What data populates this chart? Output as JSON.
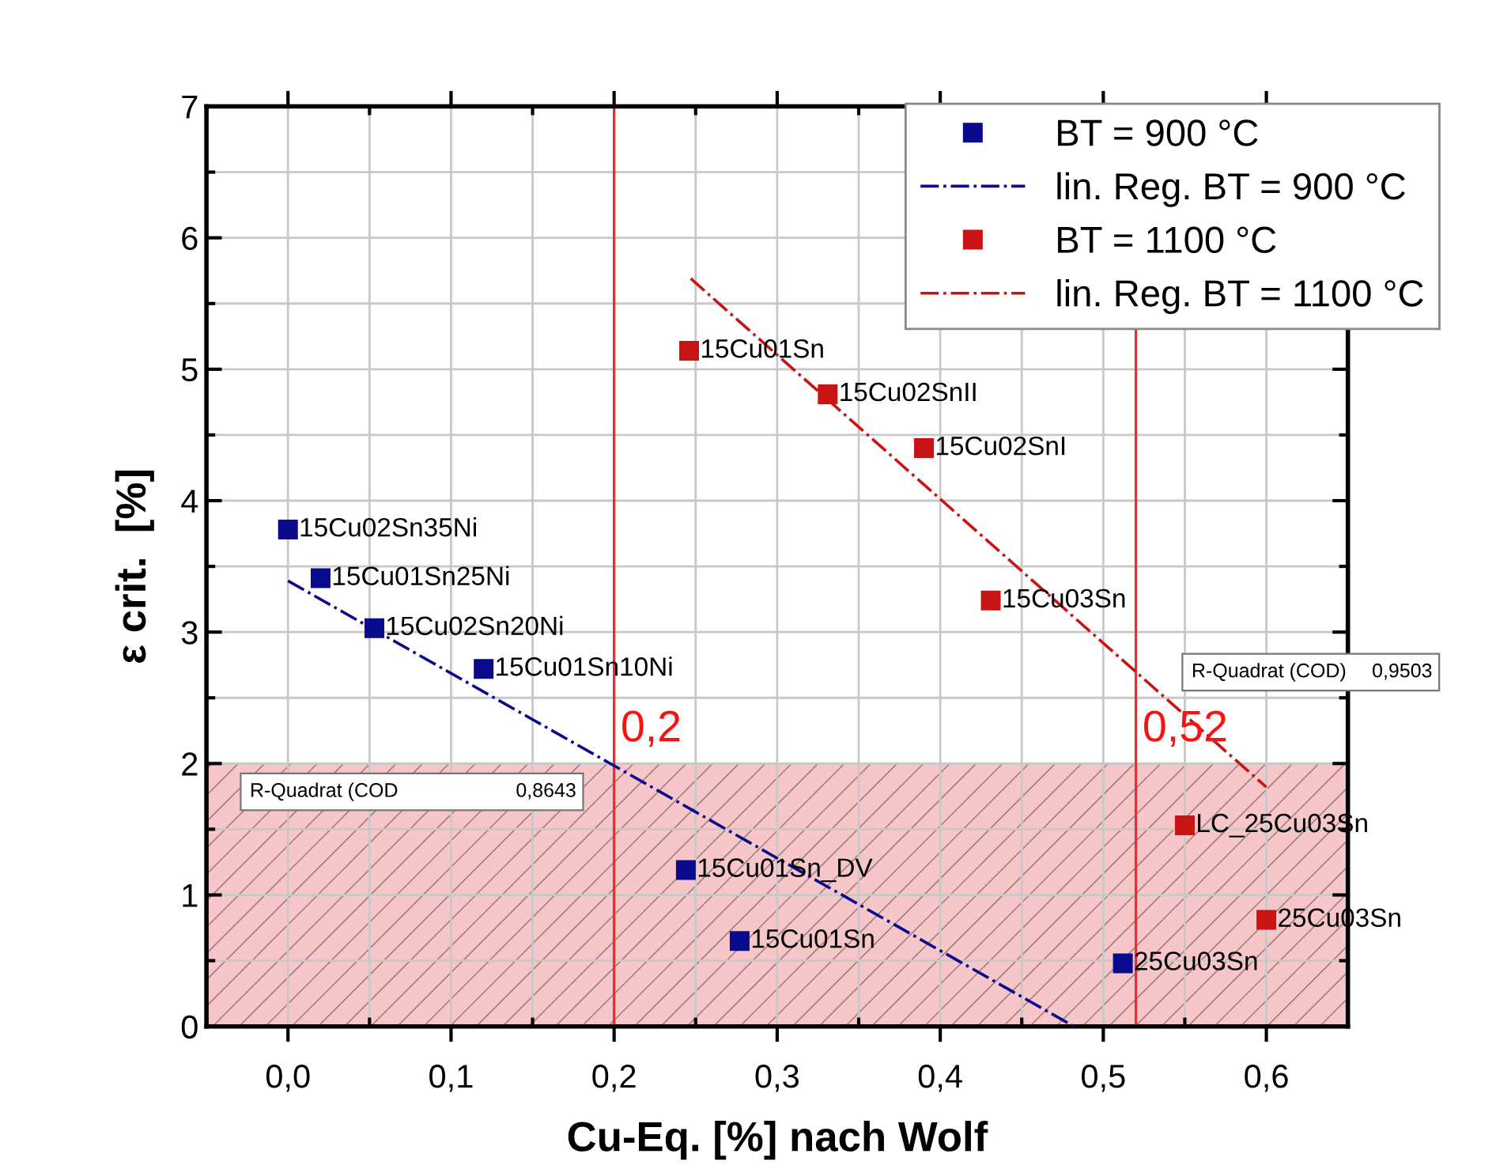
{
  "chart_data": {
    "type": "scatter",
    "xlabel": "Cu-Eq. [%] nach Wolf",
    "ylabel": "ε crit.  [%]",
    "xlim": [
      -0.05,
      0.65
    ],
    "ylim": [
      0,
      7
    ],
    "xticks": [
      {
        "value": 0,
        "label": "0,0"
      },
      {
        "value": 0.1,
        "label": "0,1"
      },
      {
        "value": 0.2,
        "label": "0,2"
      },
      {
        "value": 0.3,
        "label": "0,3"
      },
      {
        "value": 0.4,
        "label": "0,4"
      },
      {
        "value": 0.5,
        "label": "0,5"
      },
      {
        "value": 0.6,
        "label": "0,6"
      }
    ],
    "yticks": [
      0,
      1,
      2,
      3,
      4,
      5,
      6,
      7
    ],
    "grid": true,
    "legend": "top right",
    "series": [
      {
        "name": "BT = 900 °C",
        "marker": "square",
        "color": "#0a0a8c",
        "x": [
          0.0,
          0.02,
          0.053,
          0.12,
          0.244,
          0.277,
          0.512
        ],
        "values": [
          3.78,
          3.41,
          3.03,
          2.72,
          1.19,
          0.65,
          0.48
        ]
      },
      {
        "name": "lin. Reg. BT = 900 °C",
        "type": "line",
        "line_style": "dashdot",
        "color": "#0a0a8c",
        "x": [
          0.0,
          0.482
        ],
        "values": [
          3.39,
          0.0
        ]
      },
      {
        "name": "BT = 1100 °C",
        "marker": "square",
        "color": "#c81414",
        "x": [
          0.246,
          0.331,
          0.39,
          0.431,
          0.55,
          0.6
        ],
        "values": [
          5.14,
          4.81,
          4.4,
          3.24,
          1.53,
          0.81
        ]
      },
      {
        "name": "lin. Reg. BT = 1100 °C",
        "type": "line",
        "line_style": "dashdot",
        "color": "#c81414",
        "x": [
          0.247,
          0.6
        ],
        "values": [
          5.69,
          1.82
        ]
      }
    ],
    "ref_lines": [
      {
        "axis": "x",
        "value": 0.2,
        "label": "0,2",
        "color": "#e83030"
      },
      {
        "axis": "x",
        "value": 0.52,
        "label": "0,52",
        "color": "#e83030"
      }
    ],
    "bands": [
      {
        "axis": "y",
        "from": 0,
        "to": 2,
        "color": "#f7c6c8"
      }
    ],
    "annotations": [
      {
        "text": "15Cu02Sn35Ni",
        "x": 0.0,
        "y": 3.78
      },
      {
        "text": "15Cu01Sn25Ni",
        "x": 0.02,
        "y": 3.41
      },
      {
        "text": "15Cu02Sn20Ni",
        "x": 0.053,
        "y": 3.03
      },
      {
        "text": "15Cu01Sn10Ni",
        "x": 0.12,
        "y": 2.72
      },
      {
        "text": "15Cu01Sn_DV",
        "x": 0.244,
        "y": 1.19
      },
      {
        "text": "15Cu01Sn",
        "x": 0.277,
        "y": 0.65
      },
      {
        "text": "25Cu03Sn",
        "x": 0.512,
        "y": 0.48
      },
      {
        "text": "15Cu01Sn",
        "x": 0.246,
        "y": 5.14
      },
      {
        "text": "15Cu02SnII",
        "x": 0.331,
        "y": 4.81
      },
      {
        "text": "15Cu02SnI",
        "x": 0.39,
        "y": 4.4
      },
      {
        "text": "15Cu03Sn",
        "x": 0.431,
        "y": 3.24
      },
      {
        "text": "LC_25Cu03Sn",
        "x": 0.55,
        "y": 1.53
      },
      {
        "text": "25Cu03Sn",
        "x": 0.6,
        "y": 0.81
      },
      "R-Quadrat (COD",
      "0,8643",
      "R-Quadrat (COD)",
      "0,9503"
    ]
  }
}
